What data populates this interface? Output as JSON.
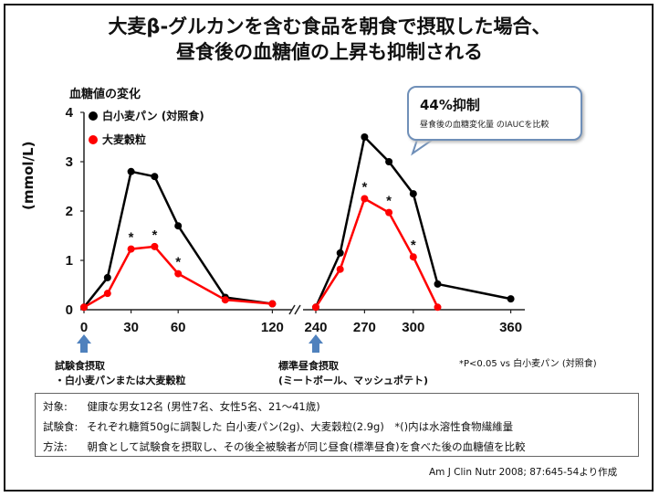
{
  "title_line1": "大麦β-グルカンを含む食品を朝食で摂取した場合、",
  "title_line2": "昼食後の血糖値の上昇も抑制される",
  "callout": {
    "title": "44%抑制",
    "subtitle": "昼食後の血糖変化量 のIAUCを比較"
  },
  "arrows": {
    "left_line1": "試験食摂取",
    "left_line2": "・白小麦パンまたは大麦穀粒",
    "right_line1": "標準昼食摂取",
    "right_line2": "(ミートボール、マッシュポテト)"
  },
  "p_note": "*P<0.05 vs 白小麦パン (対照食)",
  "info": {
    "row1_label": "対象:",
    "row1_text": "健康な男女12名 (男性7名、女性5名、21～41歳)",
    "row2_label": "試験食:",
    "row2_text": "それぞれ糖質50gに調製した 白小麦パン(2g)、大麦穀粒(2.9g)　*()内は水溶性食物繊維量",
    "row3_label": "方法:",
    "row3_text": "朝食として試験食を摂取し、その後全被験者が同じ昼食(標準昼食)を食べた後の血糖値を比較"
  },
  "citation": "Am J Clin Nutr 2008; 87:645-54より作成",
  "colors": {
    "control": "#000000",
    "barley": "#ff0000",
    "callout_border": "#6f8fb8",
    "arrow": "#4f81bd"
  },
  "chart_data": {
    "type": "line",
    "title": "",
    "ylabel": "血糖値の変化",
    "yunit": "(mmol/L)",
    "ylim": [
      0,
      4
    ],
    "yticks": [
      "0",
      "1",
      "2",
      "3",
      "4"
    ],
    "x_break": true,
    "xticks": [
      "0",
      "30",
      "60",
      "120",
      "240",
      "270",
      "300",
      "360"
    ],
    "legend_position": "top-left",
    "series": [
      {
        "name": "白小麦パン (対照食)",
        "segments": [
          {
            "x": [
              0,
              15,
              30,
              45,
              60,
              90,
              120
            ],
            "y": [
              0.05,
              0.65,
              2.8,
              2.7,
              1.7,
              0.25,
              0.12
            ]
          },
          {
            "x": [
              240,
              255,
              270,
              285,
              300,
              315,
              360
            ],
            "y": [
              0.05,
              1.15,
              3.5,
              3.0,
              2.35,
              0.52,
              0.22
            ]
          }
        ]
      },
      {
        "name": "大麦穀粒",
        "segments": [
          {
            "x": [
              0,
              15,
              30,
              45,
              60,
              90,
              120
            ],
            "y": [
              0.05,
              0.33,
              1.23,
              1.28,
              0.73,
              0.2,
              0.12
            ]
          },
          {
            "x": [
              240,
              255,
              270,
              285,
              300,
              315
            ],
            "y": [
              0.05,
              0.82,
              2.25,
              1.97,
              1.07,
              0.05
            ]
          }
        ]
      }
    ],
    "annotations": [
      {
        "text": "*",
        "x": 30,
        "y": 1.23
      },
      {
        "text": "*",
        "x": 45,
        "y": 1.28
      },
      {
        "text": "*",
        "x": 60,
        "y": 0.73
      },
      {
        "text": "*",
        "x": 270,
        "y": 2.25
      },
      {
        "text": "*",
        "x": 285,
        "y": 1.97
      },
      {
        "text": "*",
        "x": 300,
        "y": 1.07
      }
    ]
  }
}
